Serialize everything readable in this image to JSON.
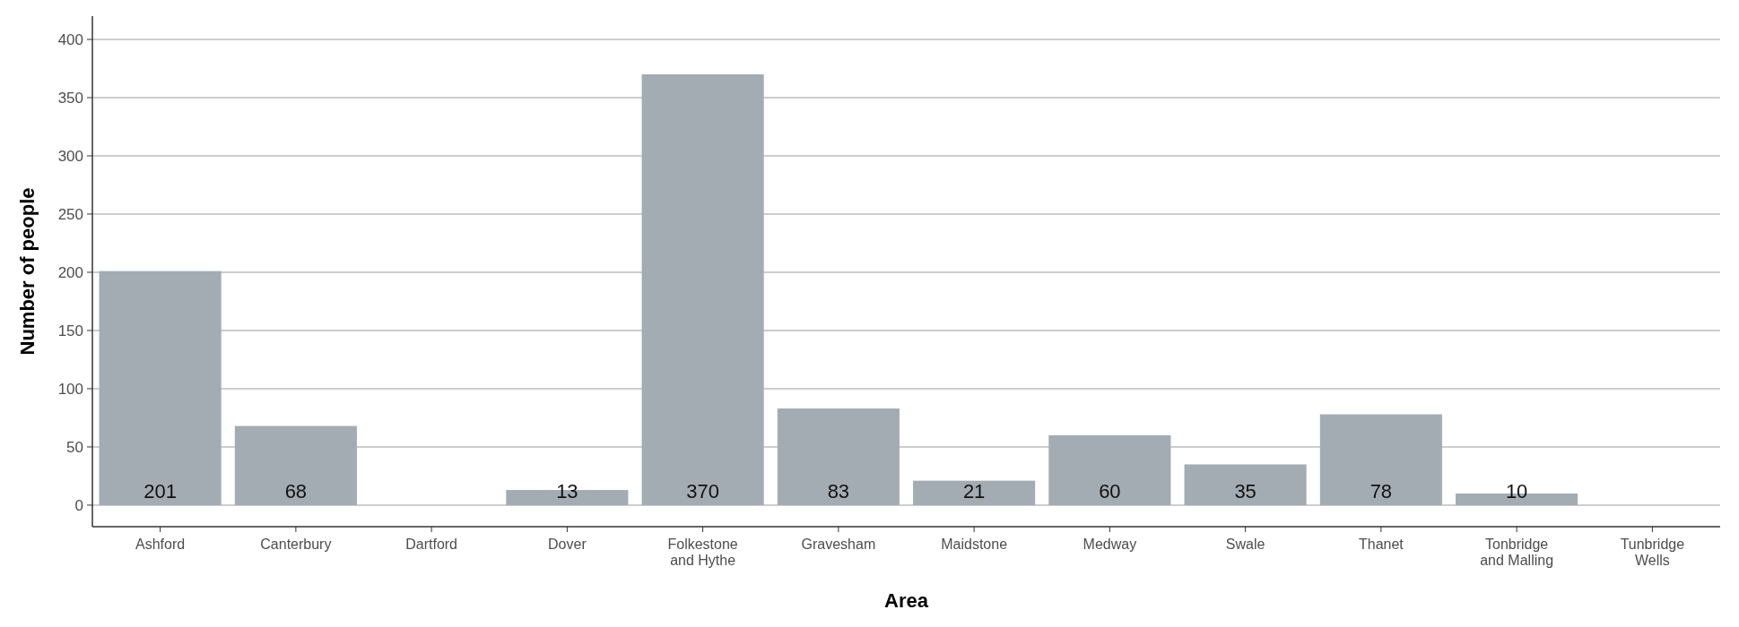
{
  "chart_data": {
    "type": "bar",
    "xlabel": "Area",
    "ylabel": "Number of people",
    "categories": [
      "Ashford",
      "Canterbury",
      "Dartford",
      "Dover",
      "Folkestone and Hythe",
      "Gravesham",
      "Maidstone",
      "Medway",
      "Swale",
      "Thanet",
      "Tonbridge and Malling",
      "Tunbridge Wells"
    ],
    "values": [
      201,
      68,
      null,
      13,
      370,
      83,
      21,
      60,
      35,
      78,
      10,
      null
    ],
    "color": "#a3acb3",
    "ylim": [
      -18.5,
      420
    ],
    "yticks": [
      0,
      50,
      100,
      150,
      200,
      250,
      300,
      350,
      400
    ],
    "grid": "y",
    "data_labels": true
  }
}
